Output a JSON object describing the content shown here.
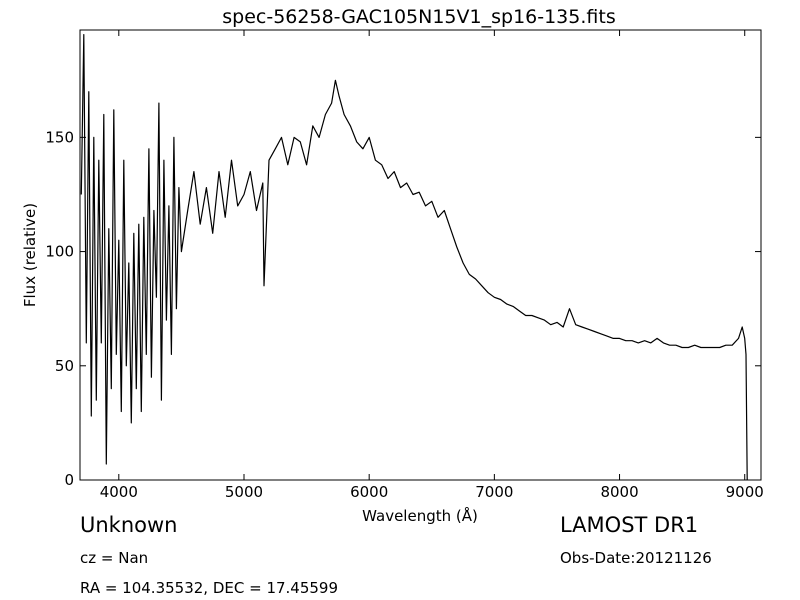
{
  "chart_data": {
    "type": "line",
    "title": "spec-56258-GAC105N15V1_sp16-135.fits",
    "xlabel": "Wavelength (Å)",
    "ylabel": "Flux (relative)",
    "xlim": [
      3690,
      9130
    ],
    "ylim": [
      0,
      197
    ],
    "xticks": [
      4000,
      5000,
      6000,
      7000,
      8000,
      9000
    ],
    "yticks": [
      0,
      50,
      100,
      150
    ],
    "grid": false,
    "legend": "none",
    "line_color": "#000000",
    "series": [
      {
        "x": [
          3700,
          3720,
          3740,
          3760,
          3780,
          3800,
          3820,
          3840,
          3860,
          3880,
          3900,
          3920,
          3940,
          3960,
          3980,
          4000,
          4020,
          4040,
          4060,
          4080,
          4100,
          4120,
          4140,
          4160,
          4180,
          4200,
          4220,
          4240,
          4260,
          4280,
          4300,
          4320,
          4340,
          4360,
          4380,
          4400,
          4420,
          4440,
          4460,
          4480,
          4500,
          4550,
          4600,
          4650,
          4700,
          4750,
          4800,
          4850,
          4900,
          4950,
          5000,
          5050,
          5100,
          5150,
          5160,
          5200,
          5250,
          5300,
          5350,
          5400,
          5450,
          5500,
          5550,
          5600,
          5650,
          5700,
          5730,
          5760,
          5800,
          5850,
          5900,
          5950,
          6000,
          6050,
          6100,
          6150,
          6200,
          6250,
          6300,
          6350,
          6400,
          6450,
          6500,
          6550,
          6600,
          6650,
          6700,
          6750,
          6800,
          6850,
          6900,
          6950,
          7000,
          7050,
          7100,
          7150,
          7200,
          7250,
          7300,
          7350,
          7400,
          7450,
          7500,
          7550,
          7600,
          7650,
          7700,
          7750,
          7800,
          7850,
          7900,
          7950,
          8000,
          8050,
          8100,
          8150,
          8200,
          8250,
          8300,
          8350,
          8400,
          8450,
          8500,
          8550,
          8600,
          8650,
          8700,
          8750,
          8800,
          8850,
          8900,
          8950,
          8980,
          9000,
          9010,
          9020
        ],
        "y": [
          125,
          195,
          60,
          170,
          28,
          150,
          35,
          140,
          60,
          160,
          7,
          110,
          40,
          162,
          55,
          105,
          30,
          140,
          50,
          95,
          25,
          108,
          40,
          112,
          30,
          115,
          55,
          145,
          45,
          118,
          80,
          165,
          35,
          140,
          70,
          120,
          55,
          150,
          75,
          128,
          100,
          118,
          135,
          112,
          128,
          108,
          135,
          115,
          140,
          120,
          125,
          135,
          118,
          130,
          85,
          140,
          145,
          150,
          138,
          150,
          148,
          138,
          155,
          150,
          160,
          165,
          175,
          168,
          160,
          155,
          148,
          145,
          150,
          140,
          138,
          132,
          135,
          128,
          130,
          125,
          126,
          120,
          122,
          115,
          118,
          110,
          102,
          95,
          90,
          88,
          85,
          82,
          80,
          79,
          77,
          76,
          74,
          72,
          72,
          71,
          70,
          68,
          69,
          67,
          75,
          68,
          67,
          66,
          65,
          64,
          63,
          62,
          62,
          61,
          61,
          60,
          61,
          60,
          62,
          60,
          59,
          59,
          58,
          58,
          59,
          58,
          58,
          58,
          58,
          59,
          59,
          62,
          67,
          62,
          55,
          0
        ]
      }
    ]
  },
  "info": {
    "object_class": "Unknown",
    "survey": "LAMOST DR1",
    "cz": "cz = Nan",
    "obs_date": "Obs-Date:20121126",
    "coords": "RA = 104.35532, DEC = 17.45599"
  }
}
